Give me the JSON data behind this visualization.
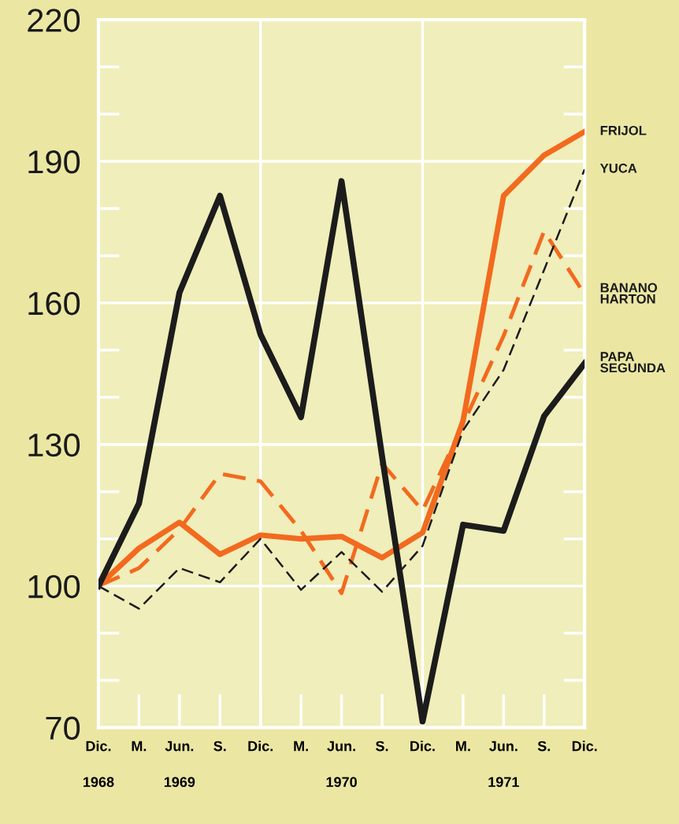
{
  "chart_data": {
    "type": "line",
    "categories": [
      "Dic.\n1968",
      "M.",
      "Jun.\n1969",
      "S.",
      "Dic.",
      "M.",
      "Jun.\n1970",
      "S.",
      "Dic.",
      "M.",
      "Jun.\n1971",
      "S.",
      "Dic."
    ],
    "ylim": [
      70,
      220
    ],
    "yticks": [
      70,
      100,
      130,
      160,
      190,
      220
    ],
    "grid": true,
    "series": [
      {
        "name": "FRIJOL",
        "color": "#f26a1f",
        "line_style": "solid",
        "values": [
          100,
          108,
          113.5,
          106.7,
          110.8,
          110,
          110.5,
          106,
          111.3,
          135,
          182.7,
          191.3,
          196.3
        ]
      },
      {
        "name": "YUCA",
        "color": "#1c1c1c",
        "line_style": "dashed",
        "values": [
          100,
          95.2,
          103.8,
          100.8,
          110,
          99.2,
          107.2,
          98.8,
          108.5,
          133,
          145.8,
          167,
          188.3
        ]
      },
      {
        "name": "BANANO\nHARTON",
        "color": "#f26a1f",
        "line_style": "dashed",
        "values": [
          100,
          103.8,
          112,
          123.8,
          122.2,
          111.7,
          98.5,
          126,
          116,
          134.3,
          153,
          175.2,
          161.8
        ]
      },
      {
        "name": "PAPA\nSEGUNDA",
        "color": "#1c1c1c",
        "line_style": "solid",
        "values": [
          100,
          117.5,
          162.2,
          182.7,
          153.3,
          135.8,
          185.8,
          127.5,
          71.3,
          113,
          111.7,
          136,
          147.2
        ]
      }
    ]
  }
}
